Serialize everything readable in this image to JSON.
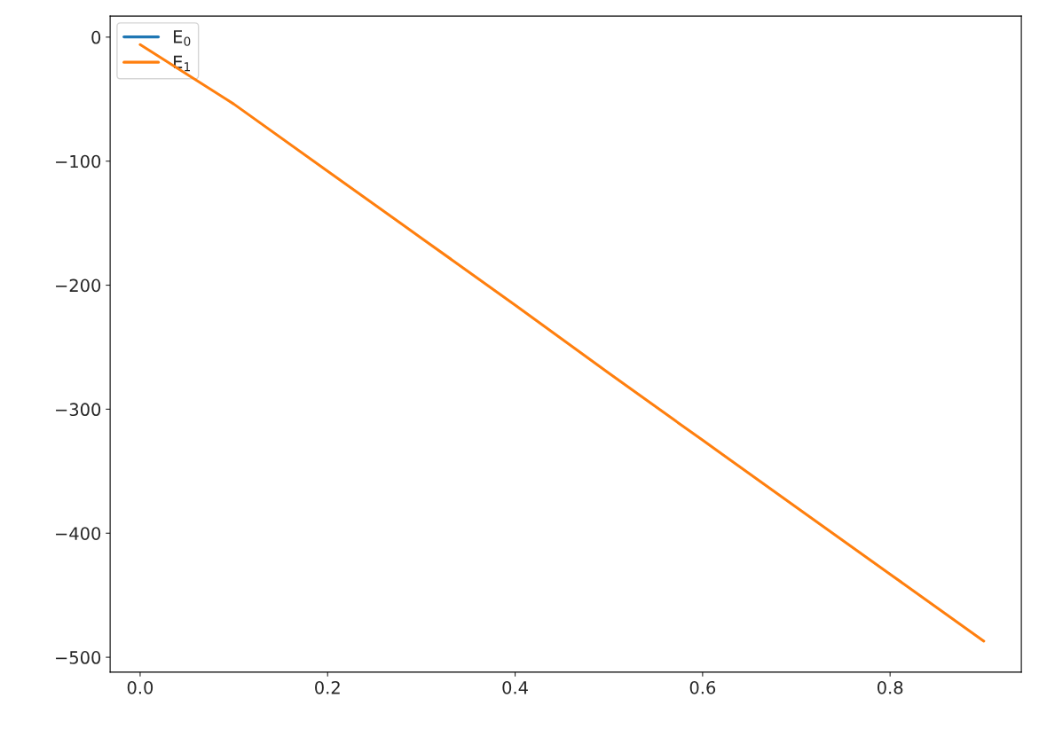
{
  "chart_data": {
    "type": "line",
    "x": [
      0,
      0.1,
      0.2,
      0.3,
      0.4,
      0.5,
      0.6,
      0.7,
      0.8,
      0.9
    ],
    "series": [
      {
        "name": "E$_{0}$",
        "color": "#1f77b4",
        "values": [
          null,
          null,
          null,
          null,
          null,
          null,
          null,
          null,
          null,
          null
        ]
      },
      {
        "name": "E$_{1}$",
        "color": "#ff7f0e",
        "values": [
          -6,
          -54,
          -108,
          -162,
          -216,
          -271,
          -325,
          -379,
          -433,
          -487
        ]
      }
    ],
    "xlim": [
      -0.032,
      0.94
    ],
    "ylim": [
      -512,
      17
    ],
    "xticks": [
      {
        "value": 0,
        "label": "0.0"
      },
      0.2,
      0.4,
      0.6,
      0.8
    ],
    "yticks": [
      {
        "value": -500,
        "label": "−500"
      },
      {
        "value": -400,
        "label": "−400"
      },
      {
        "value": -300,
        "label": "−300"
      },
      {
        "value": -200,
        "label": "−200"
      },
      {
        "value": -100,
        "label": "−100"
      },
      0
    ],
    "legend": "top left",
    "grid": false
  }
}
